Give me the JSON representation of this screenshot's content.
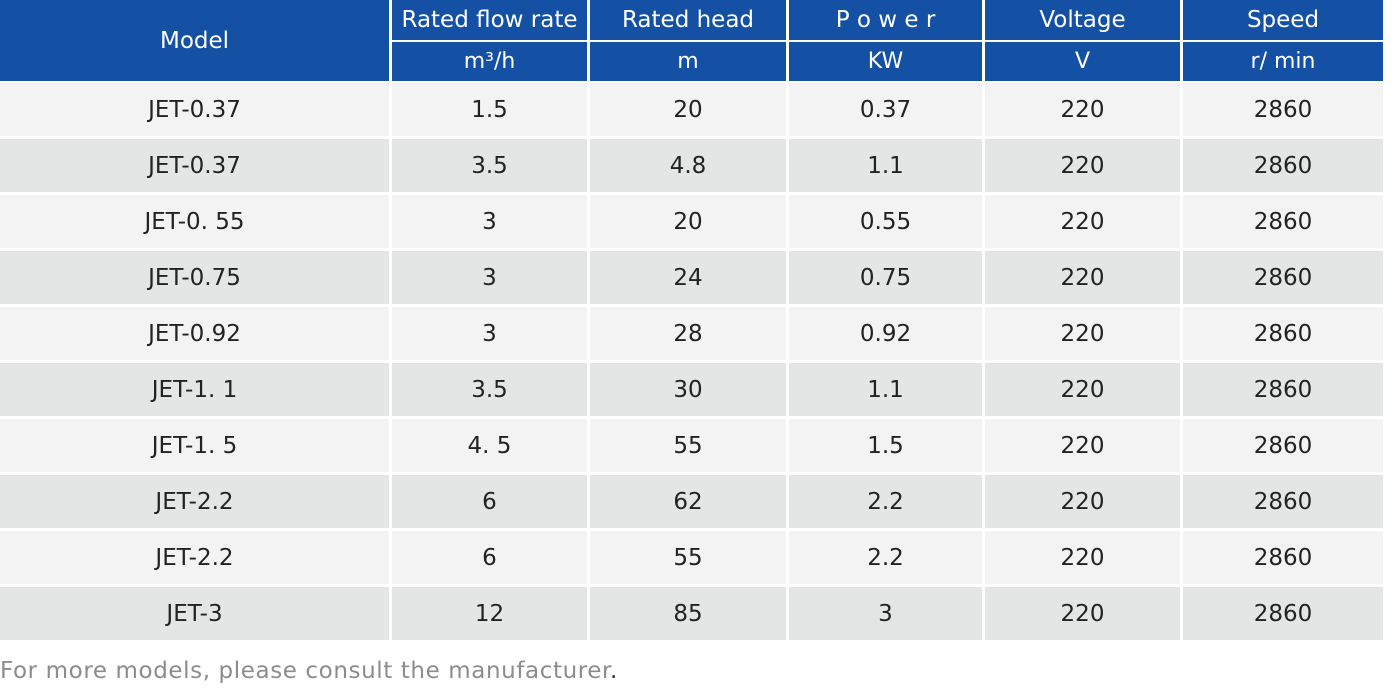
{
  "table": {
    "headers": {
      "model": "Model",
      "flow": "Rated flow rate",
      "head": "Rated head",
      "power": "P o w e r",
      "voltage": "Voltage",
      "speed": "Speed"
    },
    "units": {
      "flow": "m³/h",
      "head": "m",
      "power": "KW",
      "voltage": "V",
      "speed": "r/ min"
    },
    "rows": [
      [
        "JET-0.37",
        "1.5",
        "20",
        "0.37",
        "220",
        "2860"
      ],
      [
        "JET-0.37",
        "3.5",
        "4.8",
        "1.1",
        "220",
        "2860"
      ],
      [
        "JET-0. 55",
        "3",
        "20",
        "0.55",
        "220",
        "2860"
      ],
      [
        "JET-0.75",
        "3",
        "24",
        "0.75",
        "220",
        "2860"
      ],
      [
        "JET-0.92",
        "3",
        "28",
        "0.92",
        "220",
        "2860"
      ],
      [
        "JET-1. 1",
        "3.5",
        "30",
        "1.1",
        "220",
        "2860"
      ],
      [
        "JET-1. 5",
        "4. 5",
        "55",
        "1.5",
        "220",
        "2860"
      ],
      [
        "JET-2.2",
        "6",
        "62",
        "2.2",
        "220",
        "2860"
      ],
      [
        "JET-2.2",
        "6",
        "55",
        "2.2",
        "220",
        "2860"
      ],
      [
        "JET-3",
        "12",
        "85",
        "3",
        "220",
        "2860"
      ]
    ]
  },
  "footnote": {
    "text": "For more models, please consult the manufacturer",
    "end": "."
  },
  "colors": {
    "header_bg": "#1450a3",
    "row_light": "#f3f3f3",
    "row_dark": "#e3e6e5"
  }
}
